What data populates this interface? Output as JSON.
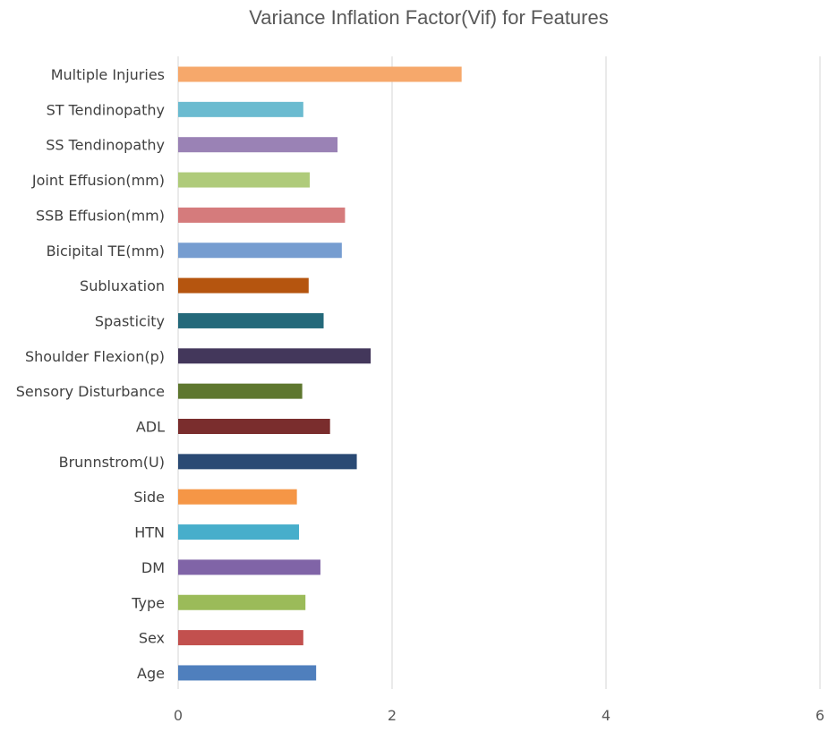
{
  "chart_data": {
    "type": "bar",
    "orientation": "horizontal",
    "title": "Variance Inflation Factor(Vif) for Features",
    "xlabel": "",
    "ylabel": "",
    "xlim": [
      0,
      6
    ],
    "x_ticks": [
      "0",
      "2",
      "4",
      "6"
    ],
    "grid": "vertical gridlines",
    "legend": "none",
    "categories": [
      "Multiple  Injuries",
      "ST Tendinopathy",
      "SS Tendinopathy",
      "Joint Effusion(mm)",
      "SSB Effusion(mm)",
      "Bicipital TE(mm)",
      "Subluxation",
      "Spasticity",
      "Shoulder Flexion(p)",
      "Sensory Disturbance",
      "ADL",
      "Brunnstrom(U)",
      "Side",
      "HTN",
      "DM",
      "Type",
      "Sex",
      "Age"
    ],
    "values": [
      2.65,
      1.17,
      1.49,
      1.23,
      1.56,
      1.53,
      1.22,
      1.36,
      1.8,
      1.16,
      1.42,
      1.67,
      1.11,
      1.13,
      1.33,
      1.19,
      1.17,
      1.29
    ],
    "colors": [
      "#F6A86B",
      "#6BBBD0",
      "#9A82B5",
      "#AFCB7A",
      "#D57B7C",
      "#769DD0",
      "#B5550F",
      "#24697A",
      "#43375B",
      "#5E772F",
      "#7A2D2D",
      "#2A4A74",
      "#F59646",
      "#47AECB",
      "#8064A7",
      "#9BBB59",
      "#C2504E",
      "#4F7FBD"
    ]
  }
}
